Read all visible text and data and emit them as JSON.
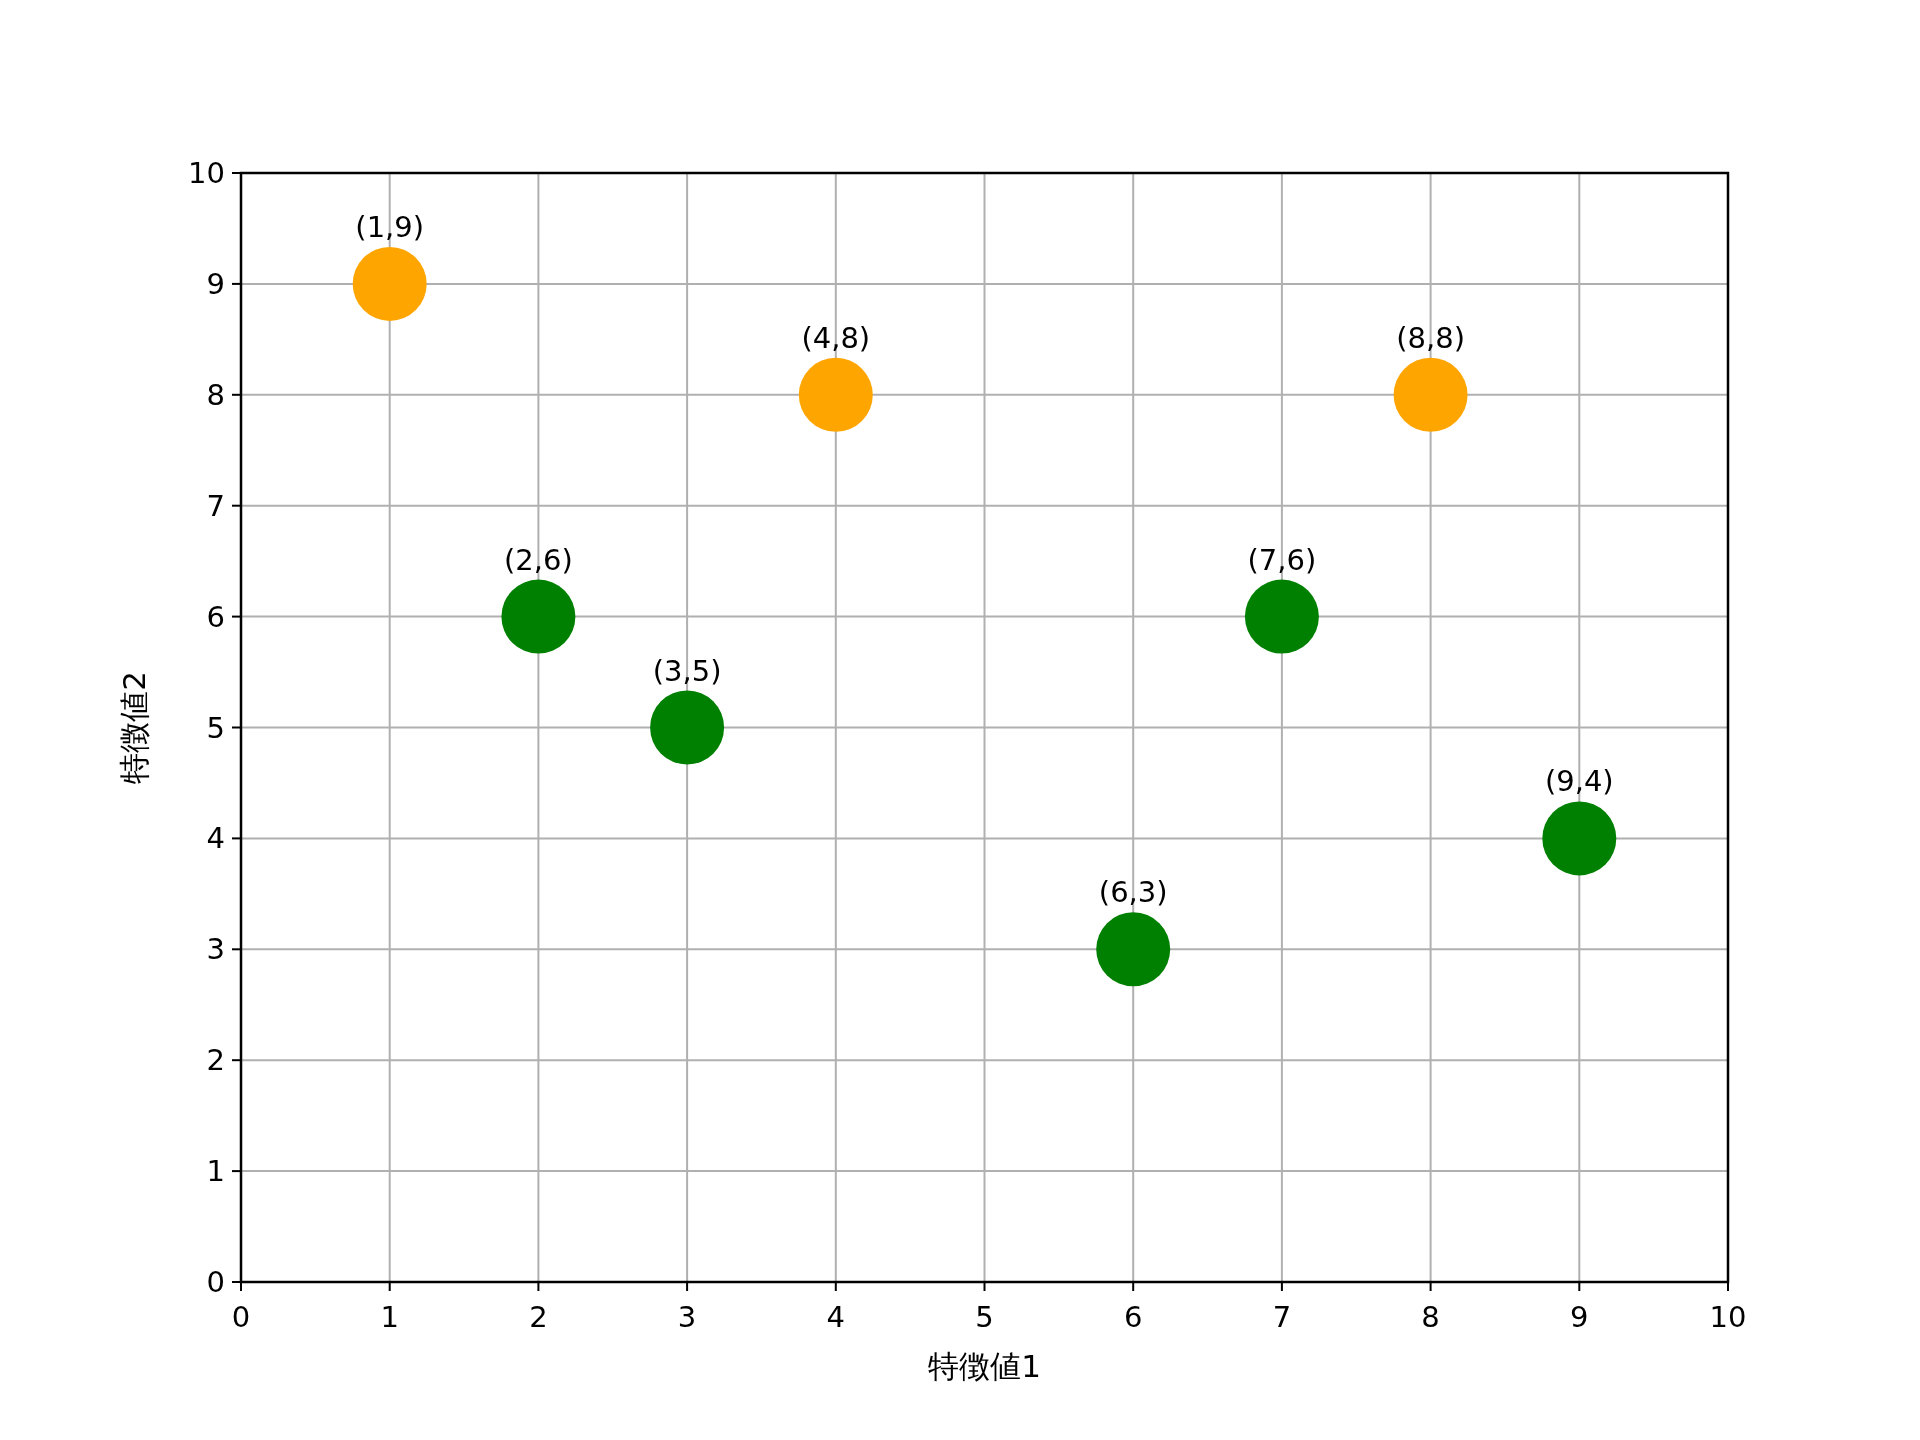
{
  "chart_data": {
    "type": "scatter",
    "xlabel": "特徴値1",
    "ylabel": "特徴値2",
    "xlim": [
      0,
      10
    ],
    "ylim": [
      0,
      10
    ],
    "xticks": [
      0,
      1,
      2,
      3,
      4,
      5,
      6,
      7,
      8,
      9,
      10
    ],
    "yticks": [
      0,
      1,
      2,
      3,
      4,
      5,
      6,
      7,
      8,
      9,
      10
    ],
    "grid": true,
    "marker": "circle",
    "series": [
      {
        "color": "#ffa500",
        "x": [
          1,
          4,
          8
        ],
        "values": [
          9,
          8,
          8
        ]
      },
      {
        "color": "#008000",
        "x": [
          2,
          3,
          6,
          7,
          9
        ],
        "values": [
          6,
          5,
          3,
          6,
          4
        ]
      }
    ],
    "annotations": [
      {
        "text": "(1,9)",
        "x": 1,
        "y": 9
      },
      {
        "text": "(4,8)",
        "x": 4,
        "y": 8
      },
      {
        "text": "(8,8)",
        "x": 8,
        "y": 8
      },
      {
        "text": "(2,6)",
        "x": 2,
        "y": 6
      },
      {
        "text": "(3,5)",
        "x": 3,
        "y": 5
      },
      {
        "text": "(6,3)",
        "x": 6,
        "y": 3
      },
      {
        "text": "(7,6)",
        "x": 7,
        "y": 6
      },
      {
        "text": "(9,4)",
        "x": 9,
        "y": 4
      }
    ]
  }
}
